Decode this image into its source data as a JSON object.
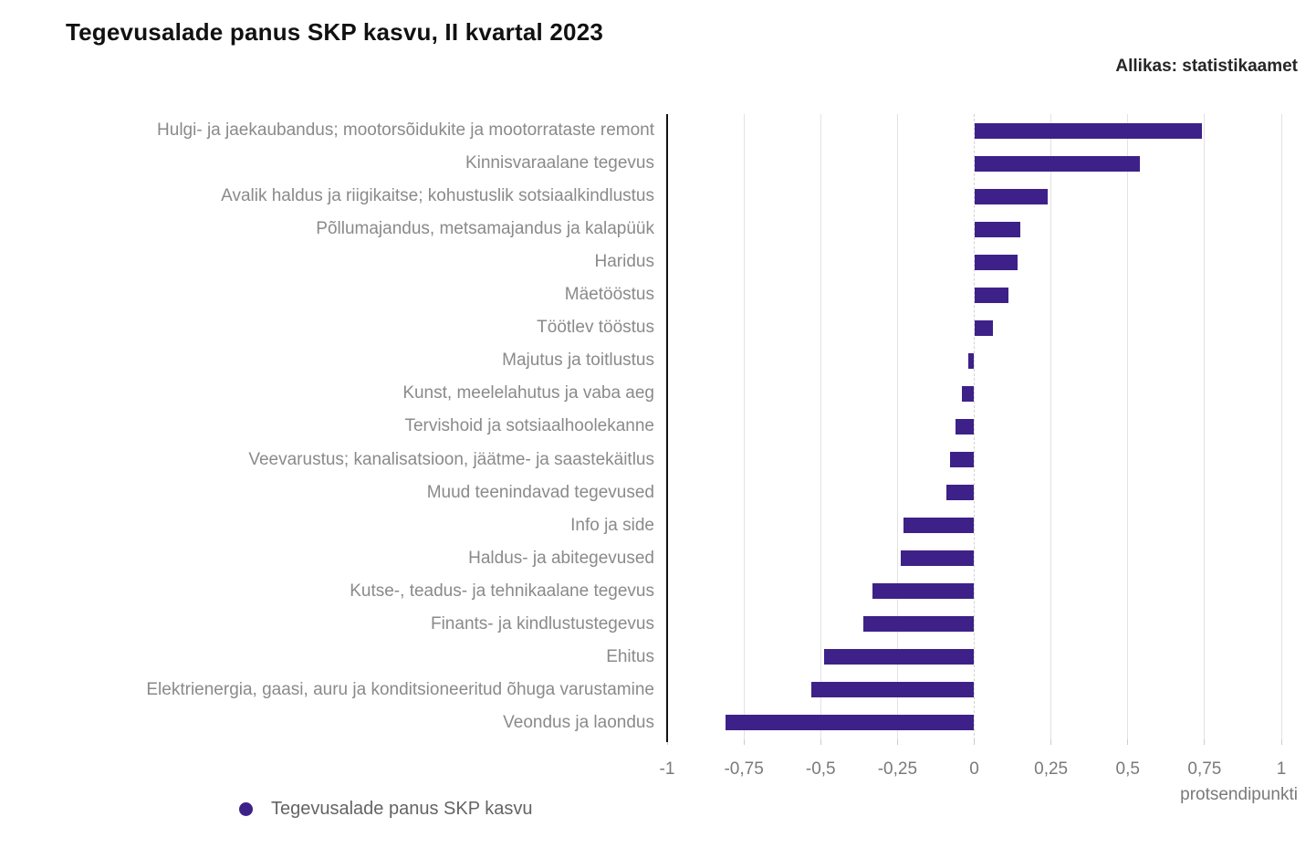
{
  "chart_data": {
    "type": "bar",
    "orientation": "horizontal",
    "title": "Tegevusalade panus SKP kasvu, II kvartal 2023",
    "source_label": "Allikas: statistikaamet",
    "unit_label": "protsendipunkti",
    "xlabel": "protsendipunkti",
    "ylabel": "",
    "xlim": [
      -1,
      1
    ],
    "grid": true,
    "bar_color": "#3d2189",
    "legend_position": "bottom-left",
    "legend": [
      {
        "label": "Tegevusalade panus SKP kasvu",
        "color": "#3d2189"
      }
    ],
    "x_ticks": [
      {
        "value": -1,
        "label": "-1"
      },
      {
        "value": -0.75,
        "label": "-0,75"
      },
      {
        "value": -0.5,
        "label": "-0,5"
      },
      {
        "value": -0.25,
        "label": "-0,25"
      },
      {
        "value": 0,
        "label": "0"
      },
      {
        "value": 0.25,
        "label": "0,25"
      },
      {
        "value": 0.5,
        "label": "0,5"
      },
      {
        "value": 0.75,
        "label": "0,75"
      },
      {
        "value": 1,
        "label": "1"
      }
    ],
    "categories": [
      "Hulgi- ja jaekaubandus; mootorsõidukite ja mootorrataste remont",
      "Kinnisvaraalane tegevus",
      "Avalik haldus ja riigikaitse; kohustuslik sotsiaalkindlustus",
      "Põllumajandus, metsamajandus ja kalapüük",
      "Haridus",
      "Mäetööstus",
      "Töötlev tööstus",
      "Majutus ja toitlustus",
      "Kunst, meelelahutus ja vaba aeg",
      "Tervishoid ja sotsiaalhoolekanne",
      "Veevarustus; kanalisatsioon, jäätme- ja saastekäitlus",
      "Muud teenindavad tegevused",
      "Info ja side",
      "Haldus- ja abitegevused",
      "Kutse-, teadus- ja tehnikaalane tegevus",
      "Finants- ja kindlustustegevus",
      "Ehitus",
      "Elektrienergia, gaasi, auru ja konditsioneeritud õhuga varustamine",
      "Veondus ja laondus"
    ],
    "values": [
      0.74,
      0.54,
      0.24,
      0.15,
      0.14,
      0.11,
      0.06,
      -0.02,
      -0.04,
      -0.06,
      -0.08,
      -0.09,
      -0.23,
      -0.24,
      -0.33,
      -0.36,
      -0.49,
      -0.53,
      -0.81
    ]
  },
  "colors": {
    "bar": "#3d2189",
    "gridline": "#e2e2e2",
    "zero_gridline": "#d2d2d2",
    "axis_line": "#111111",
    "category_label": "#8a8a8a",
    "tick_label": "#7a7a7a",
    "title": "#111111",
    "source": "#262626",
    "legend_label": "#646464"
  }
}
